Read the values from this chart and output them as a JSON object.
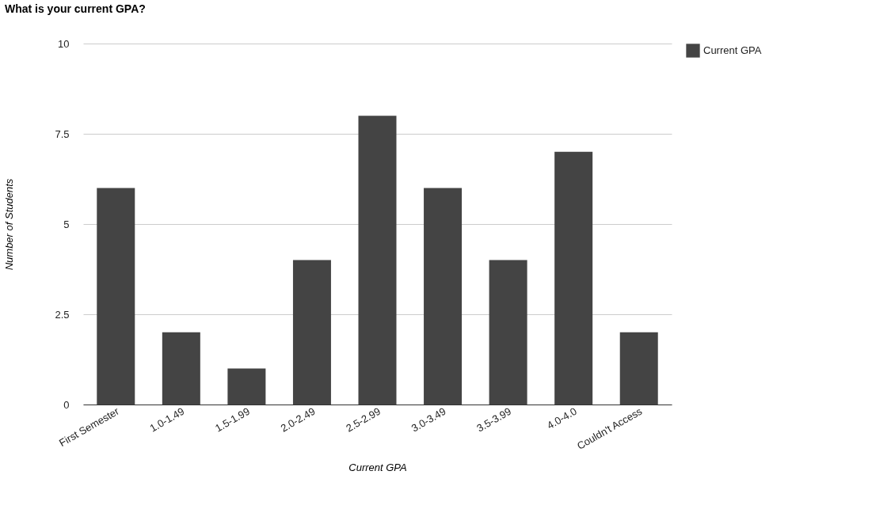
{
  "chart_data": {
    "type": "bar",
    "title": "What is your current GPA?",
    "xlabel": "Current GPA",
    "ylabel": "Number of Students",
    "categories": [
      "First Semester",
      "1.0-1.49",
      "1.5-1.99",
      "2.0-2.49",
      "2.5-2.99",
      "3.0-3.49",
      "3.5-3.99",
      "4.0-4.0",
      "Couldn't Access"
    ],
    "series": [
      {
        "name": "Current GPA",
        "color": "#444444",
        "values": [
          6,
          2,
          1,
          4,
          8,
          6,
          4,
          7,
          2
        ]
      }
    ],
    "ylim": [
      0,
      10
    ],
    "yticks": [
      0,
      2.5,
      5,
      7.5,
      10
    ],
    "grid": "y",
    "legend": "top right"
  }
}
